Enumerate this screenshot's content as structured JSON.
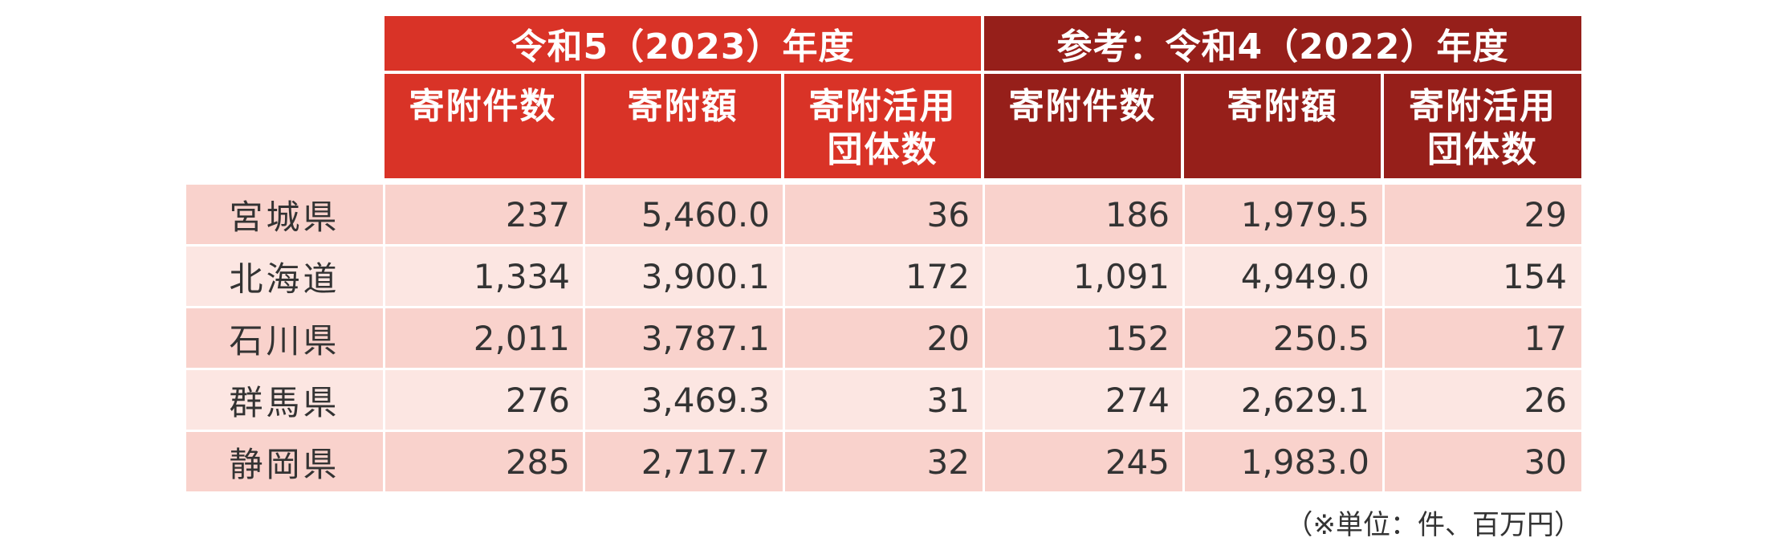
{
  "header": {
    "group_2023": "令和5（2023）年度",
    "group_2022": "参考：令和4（2022）年度",
    "col1": "寄附件数",
    "col2": "寄附額",
    "col3_line1": "寄附活用",
    "col3_line2": "団体数"
  },
  "rows": [
    {
      "pref": "宮城県",
      "c2023": "237",
      "a2023": "5,460.0",
      "o2023": "36",
      "c2022": "186",
      "a2022": "1,979.5",
      "o2022": "29"
    },
    {
      "pref": "北海道",
      "c2023": "1,334",
      "a2023": "3,900.1",
      "o2023": "172",
      "c2022": "1,091",
      "a2022": "4,949.0",
      "o2022": "154"
    },
    {
      "pref": "石川県",
      "c2023": "2,011",
      "a2023": "3,787.1",
      "o2023": "20",
      "c2022": "152",
      "a2022": "250.5",
      "o2022": "17"
    },
    {
      "pref": "群馬県",
      "c2023": "276",
      "a2023": "3,469.3",
      "o2023": "31",
      "c2022": "274",
      "a2022": "2,629.1",
      "o2022": "26"
    },
    {
      "pref": "静岡県",
      "c2023": "285",
      "a2023": "2,717.7",
      "o2023": "32",
      "c2022": "245",
      "a2022": "1,983.0",
      "o2022": "30"
    }
  ],
  "unit_note": "（※単位：件、百万円）",
  "colors": {
    "header_2023": "#d93327",
    "header_2022": "#961f1a",
    "row_odd": "#f9d2cc",
    "row_even": "#fce6e2"
  }
}
